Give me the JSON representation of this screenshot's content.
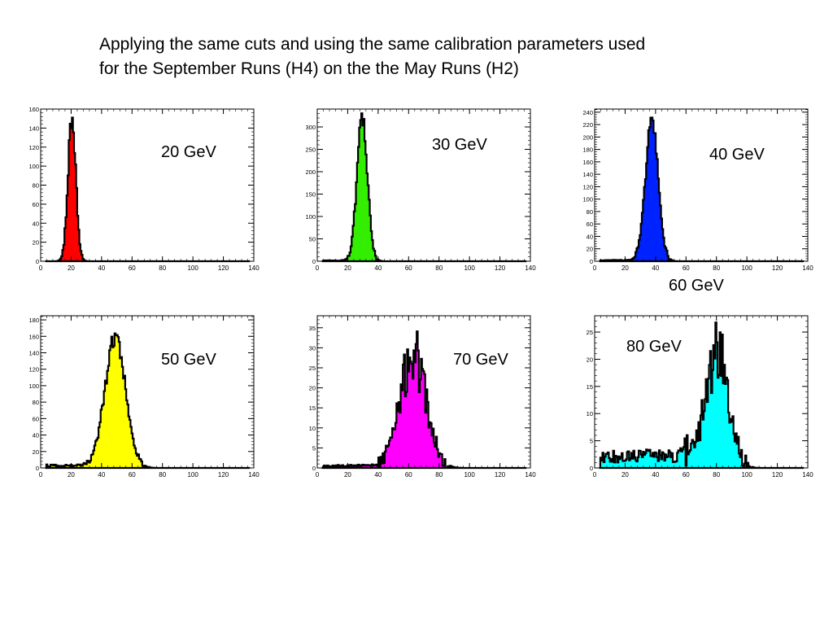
{
  "slide": {
    "title_line1": "Applying the same cuts and using the same calibration parameters used",
    "title_line2": "for the September Runs (H4) on the the May  Runs (H2)",
    "extra_label": "60  GeV"
  },
  "chart_data": [
    {
      "type": "histogram",
      "label": "20  GeV",
      "color": "#ff0000",
      "xlim": [
        0,
        140
      ],
      "xticks": [
        0,
        20,
        40,
        60,
        80,
        100,
        120,
        140
      ],
      "ylim": [
        0,
        160
      ],
      "yticks": [
        0,
        20,
        40,
        60,
        80,
        100,
        120,
        140,
        160
      ],
      "mean": 20.5,
      "sigma": 2.6,
      "peak": 150,
      "tail": 0,
      "noise": 0.06,
      "seed": 11,
      "grid": false
    },
    {
      "type": "histogram",
      "label": "30  GeV",
      "color": "#33ee00",
      "xlim": [
        0,
        140
      ],
      "xticks": [
        0,
        20,
        40,
        60,
        80,
        100,
        120,
        140
      ],
      "ylim": [
        0,
        340
      ],
      "yticks": [
        0,
        50,
        100,
        150,
        200,
        250,
        300
      ],
      "mean": 29.5,
      "sigma": 3.5,
      "peak": 315,
      "tail": 1.5,
      "noise": 0.06,
      "seed": 23,
      "grid": false
    },
    {
      "type": "histogram",
      "label": "40  GeV",
      "color": "#0022ff",
      "xlim": [
        0,
        140
      ],
      "xticks": [
        0,
        20,
        40,
        60,
        80,
        100,
        120,
        140
      ],
      "ylim": [
        0,
        245
      ],
      "yticks": [
        0,
        20,
        40,
        60,
        80,
        100,
        120,
        140,
        160,
        180,
        200,
        220,
        240
      ],
      "mean": 37.5,
      "sigma": 4.2,
      "peak": 225,
      "tail": 1.5,
      "noise": 0.05,
      "seed": 37,
      "grid": false
    },
    {
      "type": "histogram",
      "label": "50  GeV",
      "color": "#ffff00",
      "xlim": [
        0,
        140
      ],
      "xticks": [
        0,
        20,
        40,
        60,
        80,
        100,
        120,
        140
      ],
      "ylim": [
        0,
        185
      ],
      "yticks": [
        0,
        20,
        40,
        60,
        80,
        100,
        120,
        140,
        160,
        180
      ],
      "mean": 49,
      "sigma": 6.8,
      "peak": 160,
      "tail": 3,
      "noise": 0.07,
      "seed": 41,
      "grid": false
    },
    {
      "type": "histogram",
      "label": "70  GeV",
      "color": "#ff00ff",
      "xlim": [
        0,
        140
      ],
      "xticks": [
        0,
        20,
        40,
        60,
        80,
        100,
        120,
        140
      ],
      "ylim": [
        0,
        38
      ],
      "yticks": [
        0,
        5,
        10,
        15,
        20,
        25,
        30,
        35
      ],
      "mean": 63,
      "sigma": 8.5,
      "peak": 28,
      "tail": 0.6,
      "noise": 0.22,
      "seed": 53,
      "grid": false
    },
    {
      "type": "histogram",
      "label": "80  GeV",
      "color": "#00ffff",
      "xlim": [
        0,
        140
      ],
      "xticks": [
        0,
        20,
        40,
        60,
        80,
        100,
        120,
        140
      ],
      "ylim": [
        0,
        28
      ],
      "yticks": [
        0,
        5,
        10,
        15,
        20,
        25
      ],
      "mean": 80,
      "sigma": 7.5,
      "peak": 21,
      "tail": 2.5,
      "noise": 0.3,
      "seed": 67,
      "grid": false
    }
  ]
}
